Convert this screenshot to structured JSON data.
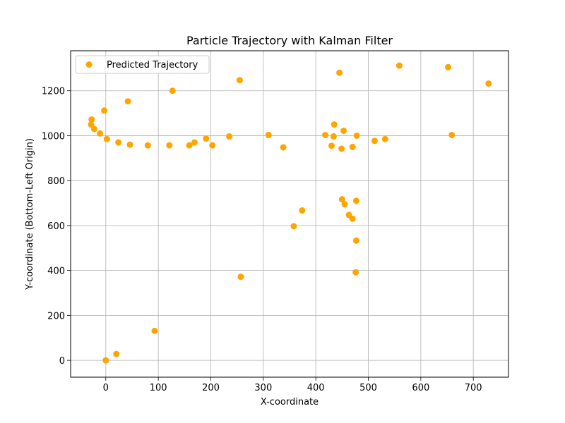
{
  "chart_data": {
    "type": "scatter",
    "title": "Particle Trajectory with Kalman Filter",
    "xlabel": "X-coordinate",
    "ylabel": "Y-coordinate (Bottom-Left Origin)",
    "xlim": [
      -67,
      767
    ],
    "ylim": [
      -75,
      1378
    ],
    "xticks": [
      0,
      100,
      200,
      300,
      400,
      500,
      600,
      700
    ],
    "yticks": [
      0,
      200,
      400,
      600,
      800,
      1000,
      1200
    ],
    "grid": true,
    "legend_position": "top-left",
    "series": [
      {
        "name": "Predicted Trajectory",
        "color": "#ffa500",
        "points": [
          [
            0,
            0
          ],
          [
            20,
            28
          ],
          [
            93,
            131
          ],
          [
            -28,
            1050
          ],
          [
            -27,
            1072
          ],
          [
            -22,
            1030
          ],
          [
            -11,
            1010
          ],
          [
            -3,
            1112
          ],
          [
            2,
            985
          ],
          [
            24,
            970
          ],
          [
            42,
            1153
          ],
          [
            46,
            960
          ],
          [
            80,
            957
          ],
          [
            121,
            957
          ],
          [
            127,
            1200
          ],
          [
            159,
            957
          ],
          [
            169,
            970
          ],
          [
            191,
            987
          ],
          [
            203,
            957
          ],
          [
            235,
            997
          ],
          [
            255,
            1247
          ],
          [
            257,
            372
          ],
          [
            310,
            1003
          ],
          [
            338,
            948
          ],
          [
            358,
            597
          ],
          [
            374,
            667
          ],
          [
            418,
            1003
          ],
          [
            430,
            955
          ],
          [
            434,
            997
          ],
          [
            435,
            1050
          ],
          [
            445,
            1280
          ],
          [
            449,
            942
          ],
          [
            450,
            717
          ],
          [
            453,
            1022
          ],
          [
            455,
            695
          ],
          [
            463,
            647
          ],
          [
            470,
            950
          ],
          [
            470,
            630
          ],
          [
            476,
            392
          ],
          [
            477,
            533
          ],
          [
            477,
            710
          ],
          [
            478,
            1000
          ],
          [
            512,
            977
          ],
          [
            532,
            985
          ],
          [
            559,
            1312
          ],
          [
            652,
            1305
          ],
          [
            659,
            1003
          ],
          [
            729,
            1232
          ]
        ]
      }
    ]
  }
}
